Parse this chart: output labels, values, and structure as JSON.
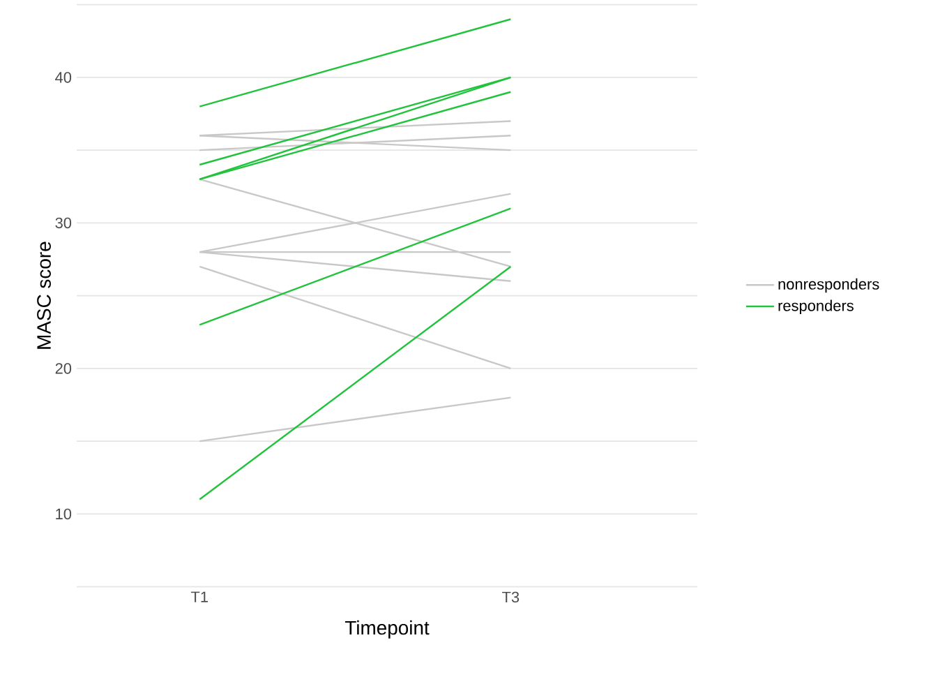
{
  "chart_data": {
    "type": "line",
    "xlabel": "Timepoint",
    "ylabel": "MASC score",
    "categories": [
      "T1",
      "T3"
    ],
    "ylim": [
      5,
      45
    ],
    "yticks": [
      {
        "value": 5,
        "label": null
      },
      10,
      {
        "value": 15,
        "label": null
      },
      20,
      {
        "value": 25,
        "label": null
      },
      30,
      {
        "value": 35,
        "label": null
      },
      40,
      {
        "value": 45,
        "label": null
      }
    ],
    "grid": "y",
    "legend": "right",
    "marker": "none",
    "line_style": "solid",
    "series": [
      {
        "name": "nonresponders",
        "color": "#c8c8c8",
        "values": [
          36,
          37
        ]
      },
      {
        "color": "#c8c8c8",
        "values": [
          36,
          35
        ]
      },
      {
        "color": "#c8c8c8",
        "values": [
          35,
          36
        ]
      },
      {
        "color": "#c8c8c8",
        "values": [
          33,
          27
        ]
      },
      {
        "color": "#c8c8c8",
        "values": [
          28,
          32
        ]
      },
      {
        "color": "#c8c8c8",
        "values": [
          28,
          28
        ]
      },
      {
        "color": "#c8c8c8",
        "values": [
          28,
          26
        ]
      },
      {
        "color": "#c8c8c8",
        "values": [
          27,
          20
        ]
      },
      {
        "color": "#c8c8c8",
        "values": [
          15,
          18
        ]
      },
      {
        "name": "responders",
        "color": "#22c33c",
        "values": [
          38,
          44
        ]
      },
      {
        "color": "#22c33c",
        "values": [
          34,
          40
        ]
      },
      {
        "color": "#22c33c",
        "values": [
          33,
          40
        ]
      },
      {
        "color": "#22c33c",
        "values": [
          33,
          39
        ]
      },
      {
        "color": "#22c33c",
        "values": [
          23,
          31
        ]
      },
      {
        "color": "#22c33c",
        "values": [
          11,
          27
        ]
      }
    ]
  }
}
